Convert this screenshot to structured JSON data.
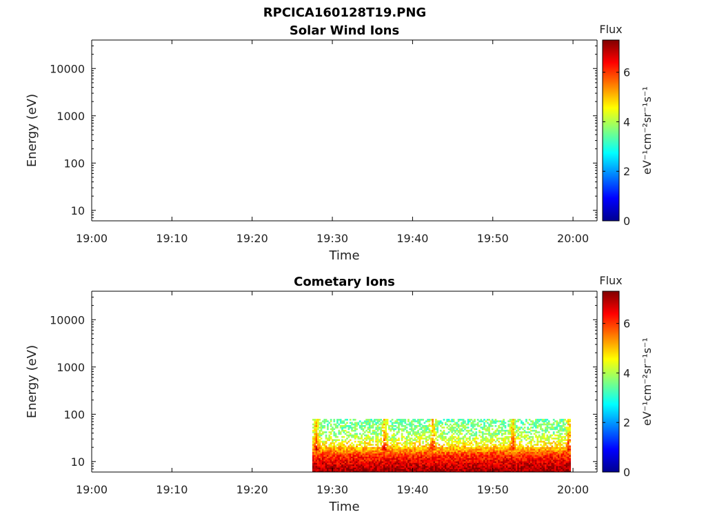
{
  "figure": {
    "title": "RPCICA160128T19.PNG"
  },
  "colorbar": {
    "label": "Flux",
    "unit_html": "eV⁻¹cm⁻²sr⁻¹s⁻¹",
    "ticks": [
      "0",
      "2",
      "4",
      "6"
    ],
    "range": [
      0,
      7.3
    ]
  },
  "chart_data": [
    {
      "type": "heatmap",
      "title": "Solar Wind Ions",
      "xlabel": "Time",
      "ylabel": "Energy (eV)",
      "x_ticks": [
        "19:00",
        "19:10",
        "19:20",
        "19:30",
        "19:40",
        "19:50",
        "20:00"
      ],
      "x_range": [
        "19:00",
        "20:03"
      ],
      "y_scale": "log",
      "y_ticks": [
        "10",
        "100",
        "1000",
        "10000"
      ],
      "y_range": [
        6,
        40000
      ],
      "data": []
    },
    {
      "type": "heatmap",
      "title": "Cometary Ions",
      "xlabel": "Time",
      "ylabel": "Energy (eV)",
      "x_ticks": [
        "19:00",
        "19:10",
        "19:20",
        "19:30",
        "19:40",
        "19:50",
        "20:00"
      ],
      "x_range": [
        "19:00",
        "20:03"
      ],
      "y_scale": "log",
      "y_ticks": [
        "10",
        "100",
        "1000",
        "10000"
      ],
      "y_range": [
        6,
        40000
      ],
      "data": {
        "time_start": "19:27.5",
        "time_end": "19:59.7",
        "energy_max_eV": 80,
        "flux_profile": [
          {
            "energy_eV": 7,
            "flux": 7.0
          },
          {
            "energy_eV": 10,
            "flux": 6.5
          },
          {
            "energy_eV": 14,
            "flux": 6.0
          },
          {
            "energy_eV": 18,
            "flux": 5.2
          },
          {
            "energy_eV": 25,
            "flux": 4.5
          },
          {
            "energy_eV": 40,
            "flux": 3.8
          },
          {
            "energy_eV": 75,
            "flux": 3.5
          }
        ],
        "spikes": [
          "19:28",
          "19:36.5",
          "19:42.5",
          "19:52.5",
          "19:59.5"
        ]
      }
    }
  ]
}
